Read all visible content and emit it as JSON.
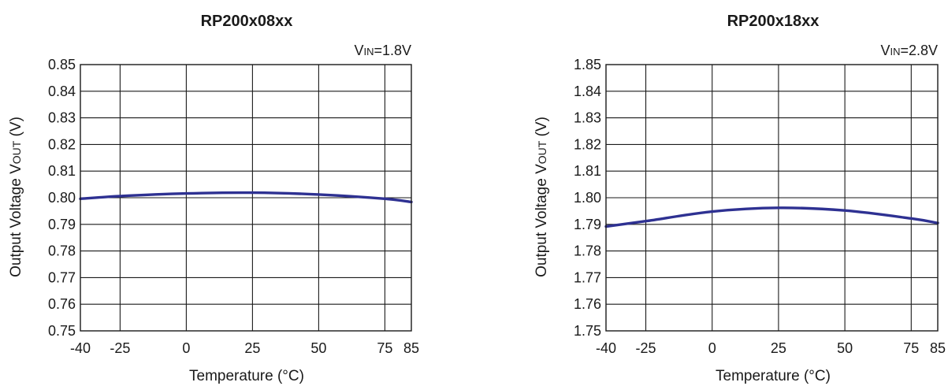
{
  "chart_data": [
    {
      "type": "line",
      "title": "RP200x08xx",
      "condition": {
        "prefix": "V",
        "sub": "IN",
        "suffix": "=1.8V"
      },
      "xlabel": "Temperature (°C)",
      "ylabel": {
        "prefix": "Output Voltage V",
        "sub": "OUT",
        "suffix": " (V)"
      },
      "xlim": [
        -40,
        85
      ],
      "ylim": [
        0.75,
        0.85
      ],
      "x_ticks": [
        -40,
        -25,
        0,
        25,
        50,
        75,
        85
      ],
      "x_tick_labels": [
        "-40",
        "-25",
        "0",
        "25",
        "50",
        "75",
        "85"
      ],
      "y_ticks": [
        0.75,
        0.76,
        0.77,
        0.78,
        0.79,
        0.8,
        0.81,
        0.82,
        0.83,
        0.84,
        0.85
      ],
      "y_tick_labels": [
        "0.75",
        "0.76",
        "0.77",
        "0.78",
        "0.79",
        "0.80",
        "0.81",
        "0.82",
        "0.83",
        "0.84",
        "0.85"
      ],
      "grid": true,
      "line_color": "#2e3192",
      "series": [
        {
          "x": [
            -40,
            -25,
            0,
            25,
            50,
            75,
            85
          ],
          "y": [
            0.7996,
            0.8006,
            0.8016,
            0.8019,
            0.8012,
            0.7996,
            0.7984
          ]
        }
      ]
    },
    {
      "type": "line",
      "title": "RP200x18xx",
      "condition": {
        "prefix": "V",
        "sub": "IN",
        "suffix": "=2.8V"
      },
      "xlabel": "Temperature (°C)",
      "ylabel": {
        "prefix": "Output Voltage V",
        "sub": "OUT",
        "suffix": " (V)"
      },
      "xlim": [
        -40,
        85
      ],
      "ylim": [
        1.75,
        1.85
      ],
      "x_ticks": [
        -40,
        -25,
        0,
        25,
        50,
        75,
        85
      ],
      "x_tick_labels": [
        "-40",
        "-25",
        "0",
        "25",
        "50",
        "75",
        "85"
      ],
      "y_ticks": [
        1.75,
        1.76,
        1.77,
        1.78,
        1.79,
        1.8,
        1.81,
        1.82,
        1.83,
        1.84,
        1.85
      ],
      "y_tick_labels": [
        "1.75",
        "1.76",
        "1.77",
        "1.78",
        "1.79",
        "1.80",
        "1.81",
        "1.82",
        "1.83",
        "1.84",
        "1.85"
      ],
      "grid": true,
      "line_color": "#2e3192",
      "series": [
        {
          "x": [
            -40,
            -25,
            0,
            25,
            50,
            75,
            85
          ],
          "y": [
            1.7892,
            1.7912,
            1.7948,
            1.7962,
            1.7952,
            1.7922,
            1.7905
          ]
        }
      ]
    }
  ]
}
